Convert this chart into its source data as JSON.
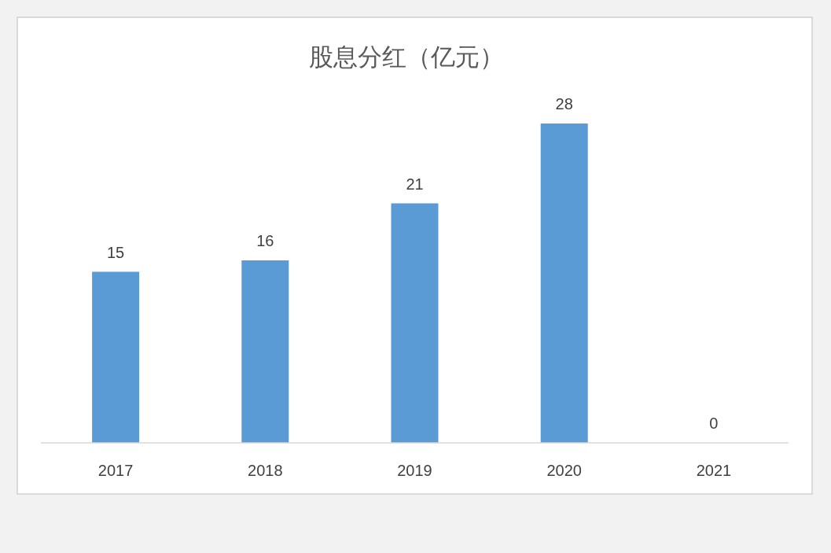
{
  "chart_data": {
    "type": "bar",
    "title": "股息分红（亿元）",
    "categories": [
      "2017",
      "2018",
      "2019",
      "2020",
      "2021"
    ],
    "values": [
      15,
      16,
      21,
      28,
      0
    ],
    "color": "#5b9bd5",
    "data_labels": true
  }
}
